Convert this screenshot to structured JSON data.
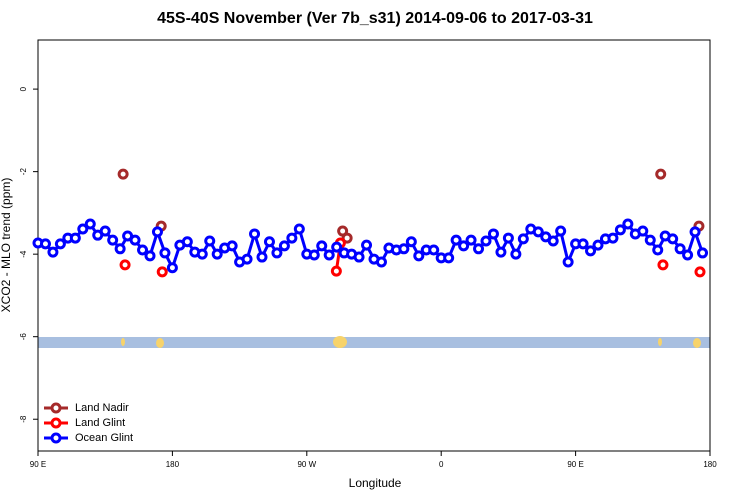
{
  "chart_data": {
    "type": "line",
    "title": "45S-40S November (Ver 7b_s31)   2014-09-06 to 2017-03-31",
    "x_label": "Longitude",
    "y_label": "XCO2 - MLO trend (ppm)",
    "xlim": [
      90,
      540
    ],
    "ylim": [
      -8.77,
      1.19
    ],
    "xticks": [
      {
        "value": 90,
        "label": "90 E"
      },
      180,
      {
        "value": 270,
        "label": "90 W"
      },
      {
        "value": 360,
        "label": "0"
      },
      {
        "value": 450,
        "label": "90 E"
      },
      {
        "value": 540,
        "label": "180"
      }
    ],
    "yticks": [
      0,
      -2,
      -4,
      -6,
      -8
    ],
    "legend": "bottom-left",
    "series": [
      {
        "name": "Land Nadir",
        "color": "#a52a2a",
        "x": [
          147,
          172.5,
          294,
          297,
          507,
          532.6
        ],
        "values": [
          -2.06,
          -3.32,
          -3.44,
          -3.61,
          -2.06,
          -3.32
        ]
      },
      {
        "name": "Land Glint",
        "color": "#ff0000",
        "x": [
          148.3,
          173.2,
          289.8,
          292.5,
          508.5,
          533.3
        ],
        "values": [
          -4.26,
          -4.43,
          -4.41,
          -3.73,
          -4.26,
          -4.43
        ]
      },
      {
        "name": "Ocean Glint",
        "color": "#0000ff",
        "x": [
          90,
          95,
          100,
          105,
          110,
          115,
          120,
          125,
          130,
          135,
          140,
          145,
          150,
          155,
          160,
          165,
          170,
          175,
          180,
          185,
          190,
          195,
          200,
          205,
          210,
          215,
          220,
          225,
          230,
          235,
          240,
          245,
          250,
          255,
          260,
          265,
          270,
          275,
          280,
          285,
          290,
          295,
          300,
          305,
          310,
          315,
          320,
          325,
          330,
          335,
          340,
          345,
          350,
          355,
          360,
          365,
          370,
          375,
          380,
          385,
          390,
          395,
          400,
          405,
          410,
          415,
          420,
          425,
          430,
          435,
          440,
          445,
          450,
          455,
          460,
          465,
          470,
          475,
          480,
          485,
          490,
          495,
          500,
          505,
          510,
          515,
          520,
          525,
          530,
          535
        ],
        "values": [
          -3.73,
          -3.75,
          -3.95,
          -3.75,
          -3.61,
          -3.61,
          -3.39,
          -3.27,
          -3.54,
          -3.44,
          -3.66,
          -3.87,
          -3.56,
          -3.66,
          -3.9,
          -4.04,
          -3.46,
          -3.97,
          -4.33,
          -3.78,
          -3.7,
          -3.95,
          -4.0,
          -3.68,
          -4.0,
          -3.85,
          -3.8,
          -4.19,
          -4.12,
          -3.51,
          -4.07,
          -3.7,
          -3.97,
          -3.8,
          -3.61,
          -3.39,
          -4.0,
          -4.02,
          -3.8,
          -4.02,
          -3.83,
          -3.97,
          -4.0,
          -4.07,
          -3.78,
          -4.12,
          -4.19,
          -3.85,
          -3.9,
          -3.87,
          -3.7,
          -4.04,
          -3.9,
          -3.9,
          -4.09,
          -4.09,
          -3.66,
          -3.8,
          -3.66,
          -3.87,
          -3.68,
          -3.51,
          -3.95,
          -3.61,
          -4.0,
          -3.63,
          -3.39,
          -3.46,
          -3.58,
          -3.68,
          -3.44,
          -4.19,
          -3.75,
          -3.75,
          -3.92,
          -3.78,
          -3.63,
          -3.61,
          -3.41,
          -3.27,
          -3.51,
          -3.44,
          -3.66,
          -3.9,
          -3.56,
          -3.63,
          -3.87,
          -4.02,
          -3.46,
          -3.97
        ]
      }
    ]
  }
}
